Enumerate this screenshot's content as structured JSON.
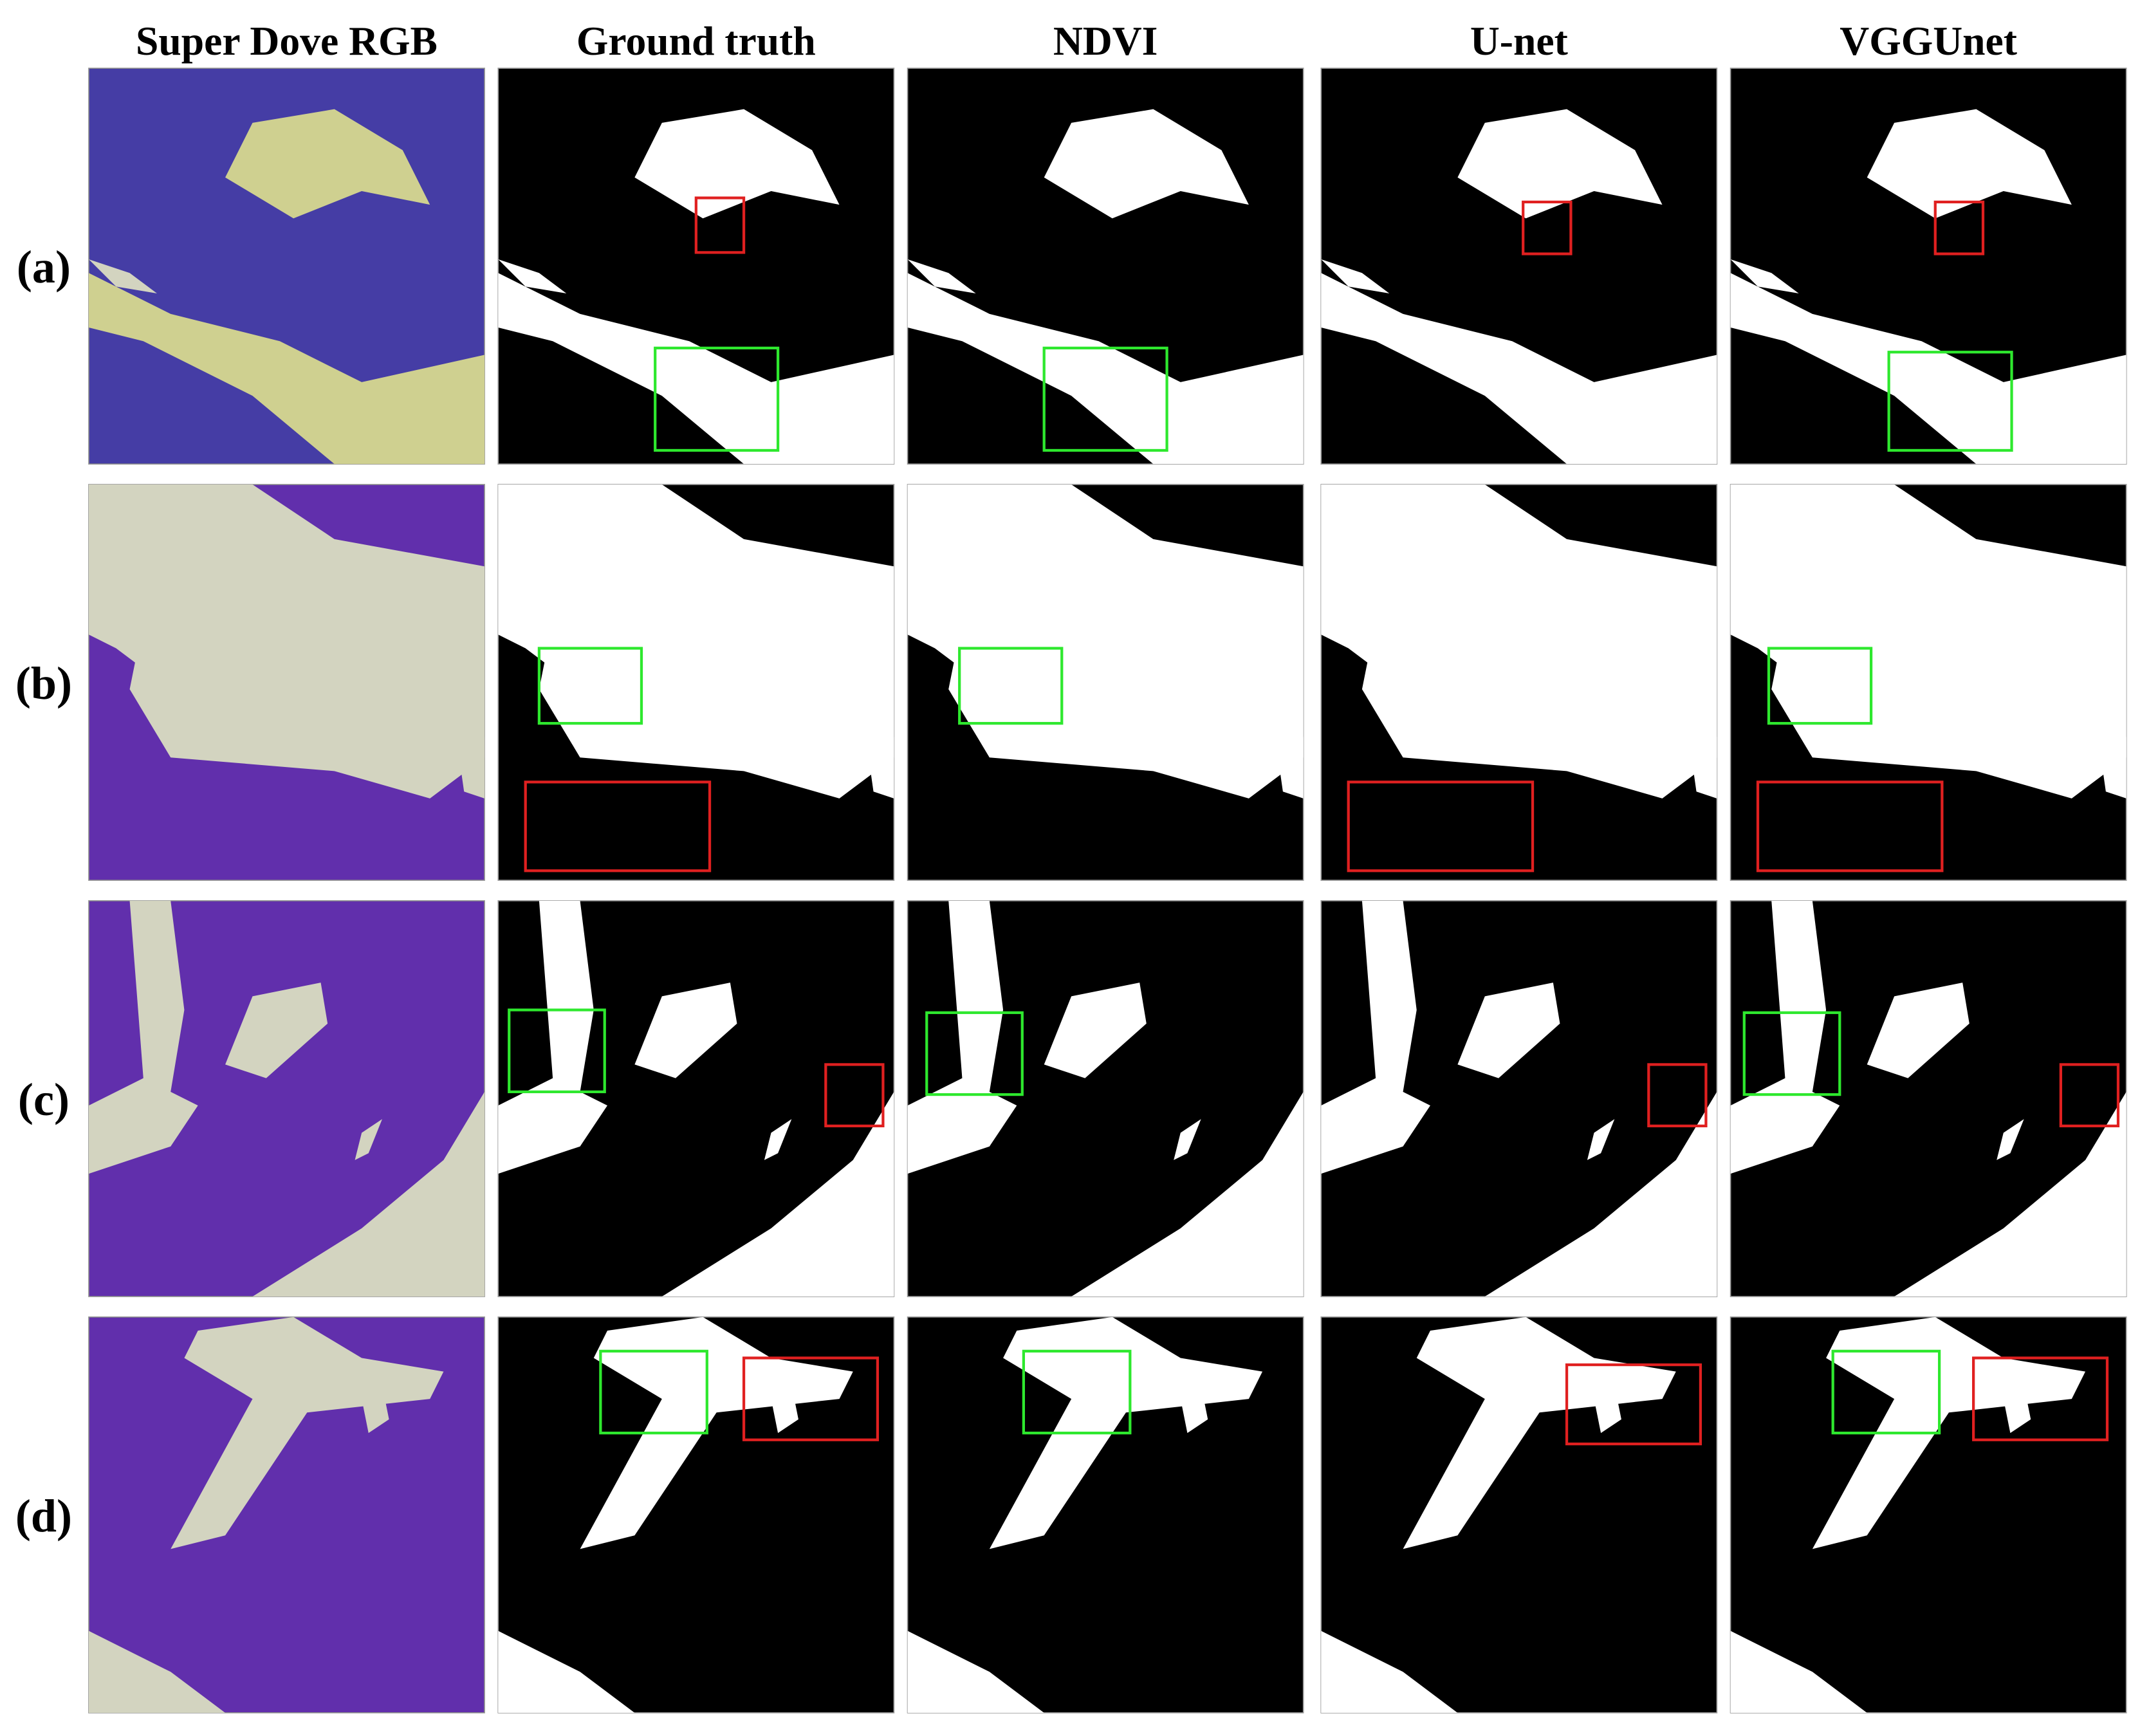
{
  "header": {
    "columns": [
      "Super Dove RGB",
      "Ground truth",
      "NDVI",
      "U-net",
      "VGGUnet"
    ]
  },
  "rows": [
    {
      "label": "(a)"
    },
    {
      "label": "(b)"
    },
    {
      "label": "(c)"
    },
    {
      "label": "(d)"
    }
  ]
}
